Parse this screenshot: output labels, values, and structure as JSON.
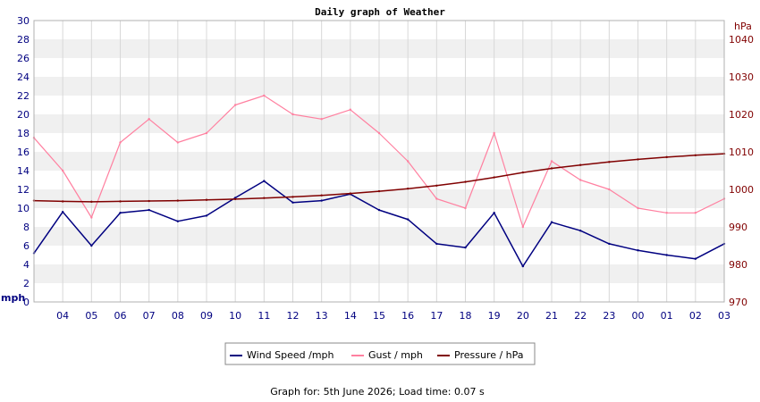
{
  "chart_data": {
    "type": "line",
    "title": "Daily graph of Weather",
    "x_tick_labels": [
      "04",
      "05",
      "06",
      "07",
      "08",
      "09",
      "10",
      "11",
      "12",
      "13",
      "14",
      "15",
      "16",
      "17",
      "18",
      "19",
      "20",
      "21",
      "22",
      "23",
      "00",
      "01",
      "02",
      "03"
    ],
    "y_left": {
      "unit": "mph",
      "range": [
        0,
        30
      ],
      "ticks": [
        "0",
        "2",
        "4",
        "6",
        "8",
        "10",
        "12",
        "14",
        "16",
        "18",
        "20",
        "22",
        "24",
        "26",
        "28",
        "30"
      ]
    },
    "y_right": {
      "unit": "hPa",
      "range": [
        970,
        1045
      ],
      "ticks": [
        "970",
        "980",
        "990",
        "1000",
        "1010",
        "1020",
        "1030",
        "1040"
      ]
    },
    "grid": true,
    "legend_position": "bottom",
    "series": [
      {
        "name": "Wind Speed /mph",
        "axis": "left",
        "color": "#000080",
        "x": [
          "03:00",
          "04:00",
          "05:00",
          "06:00",
          "07:00",
          "08:00",
          "09:00",
          "10:00",
          "11:00",
          "12:00",
          "13:00",
          "14:00",
          "15:00",
          "16:00",
          "17:00",
          "18:00",
          "19:00",
          "20:00",
          "21:00",
          "22:00",
          "23:00",
          "00:00",
          "01:00",
          "02:00",
          "03:00"
        ],
        "values": [
          5.2,
          9.6,
          6.0,
          9.5,
          9.8,
          8.6,
          9.2,
          11.1,
          12.9,
          10.6,
          10.8,
          11.5,
          9.8,
          8.8,
          6.2,
          5.8,
          9.5,
          3.8,
          8.5,
          7.6,
          6.2,
          5.5,
          5.0,
          4.6,
          6.2
        ]
      },
      {
        "name": "Gust / mph",
        "axis": "left",
        "color": "#ff80a0",
        "x": [
          "03:00",
          "04:00",
          "05:00",
          "06:00",
          "07:00",
          "08:00",
          "09:00",
          "10:00",
          "11:00",
          "12:00",
          "13:00",
          "14:00",
          "15:00",
          "16:00",
          "17:00",
          "18:00",
          "19:00",
          "20:00",
          "21:00",
          "22:00",
          "23:00",
          "00:00",
          "01:00",
          "02:00",
          "03:00"
        ],
        "values": [
          17.5,
          14.0,
          9.0,
          17.0,
          19.5,
          17.0,
          18.0,
          21.0,
          22.0,
          20.0,
          19.5,
          20.5,
          18.0,
          15.0,
          11.0,
          10.0,
          18.0,
          8.0,
          15.0,
          13.0,
          12.0,
          10.0,
          9.5,
          9.5,
          11.0
        ]
      },
      {
        "name": "Pressure / hPa",
        "axis": "right",
        "color": "#800000",
        "x": [
          "03:00",
          "04:00",
          "05:00",
          "06:00",
          "07:00",
          "08:00",
          "09:00",
          "10:00",
          "11:00",
          "12:00",
          "13:00",
          "14:00",
          "15:00",
          "16:00",
          "17:00",
          "18:00",
          "19:00",
          "20:00",
          "21:00",
          "22:00",
          "23:00",
          "00:00",
          "01:00",
          "02:00",
          "03:00"
        ],
        "values": [
          997.0,
          996.8,
          996.7,
          996.8,
          996.9,
          997.0,
          997.2,
          997.4,
          997.7,
          998.0,
          998.4,
          998.9,
          999.5,
          1000.2,
          1001.0,
          1002.0,
          1003.2,
          1004.5,
          1005.6,
          1006.5,
          1007.3,
          1008.0,
          1008.6,
          1009.1,
          1009.5
        ]
      }
    ]
  },
  "footer": "Graph for: 5th June 2026; Load time: 0.07 s",
  "colors": {
    "left_axis": "#000080",
    "right_axis": "#800000",
    "band": "#f0f0f0",
    "grid": "#d8d8d8"
  }
}
